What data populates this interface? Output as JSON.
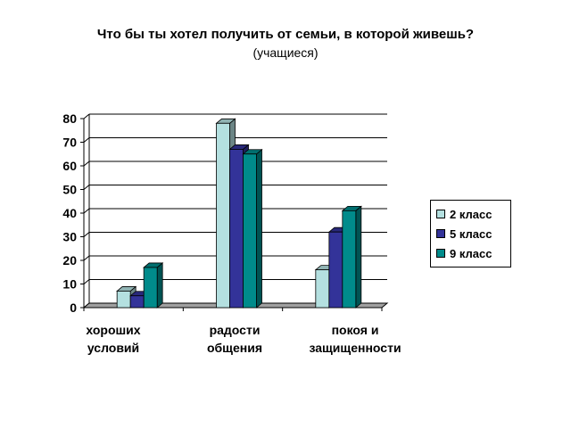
{
  "chart_data": {
    "type": "bar",
    "title": "Что бы ты хотел получить от семьи, в которой живешь?",
    "subtitle": "(учащиеся)",
    "categories": [
      "хороших\nусловий",
      "радости\nобщения",
      "покоя и\nзащищенности"
    ],
    "series": [
      {
        "name": "2 класс",
        "color": "#b4e0e0",
        "values": [
          7,
          78,
          16
        ]
      },
      {
        "name": "5 класс",
        "color": "#333399",
        "values": [
          5,
          67,
          32
        ]
      },
      {
        "name": "9 класс",
        "color": "#008b8b",
        "values": [
          17,
          65,
          41
        ]
      }
    ],
    "ylim": [
      0,
      80
    ],
    "yticks": [
      "0",
      "10",
      "20",
      "30",
      "40",
      "50",
      "60",
      "70",
      "80"
    ],
    "grid": true,
    "legend_position": "right"
  }
}
